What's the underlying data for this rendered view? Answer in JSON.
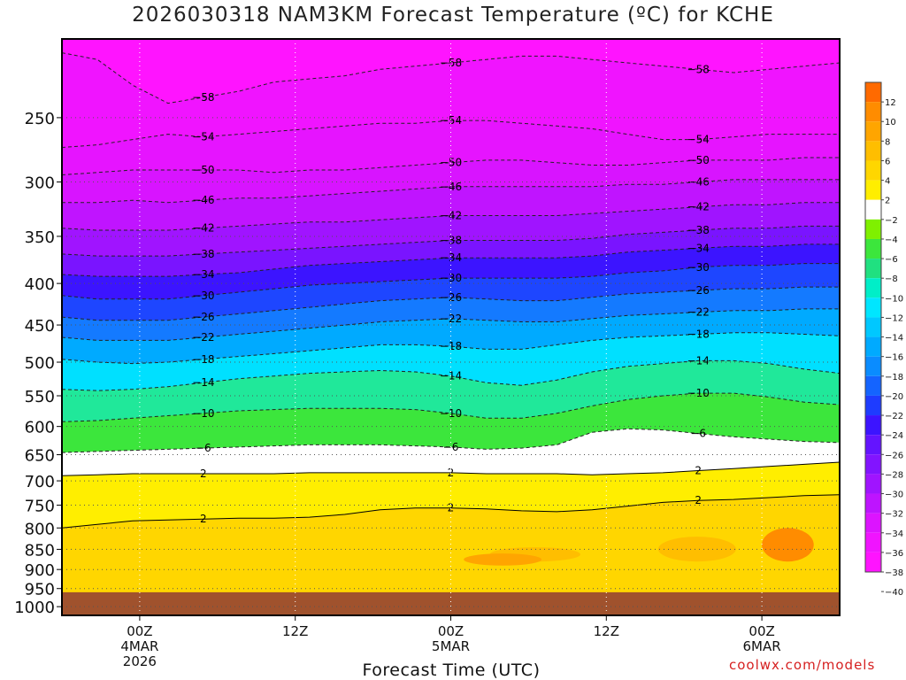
{
  "chart_data": {
    "type": "heatmap",
    "title": "2026030318 NAM3KM Forecast Temperature (ºC) for KCHE",
    "xlabel": "Forecast Time (UTC)",
    "ylabel": "",
    "credit": "coolwx.com/models",
    "x_ticks": [
      {
        "hour": 6,
        "lines": [
          "00Z",
          "4MAR",
          "2026"
        ]
      },
      {
        "hour": 18,
        "lines": [
          "12Z"
        ]
      },
      {
        "hour": 30,
        "lines": [
          "00Z",
          "5MAR"
        ]
      },
      {
        "hour": 42,
        "lines": [
          "12Z"
        ]
      },
      {
        "hour": 54,
        "lines": [
          "00Z",
          "6MAR"
        ]
      }
    ],
    "xlim_hours": [
      0,
      60
    ],
    "y_ticks": [
      250,
      300,
      350,
      400,
      450,
      500,
      550,
      600,
      650,
      700,
      750,
      800,
      850,
      900,
      950,
      1000
    ],
    "ylim_pressure_hpa": [
      200,
      1025
    ],
    "y_scale": "log",
    "grid": "dotted",
    "legend": "right",
    "colorbar_labels": [
      "12",
      "10",
      "8",
      "6",
      "4",
      "2",
      "-2",
      "-4",
      "-6",
      "-8",
      "-10",
      "-12",
      "-14",
      "-16",
      "-18",
      "-20",
      "-22",
      "-24",
      "-26",
      "-28",
      "-30",
      "-32",
      "-34",
      "-36",
      "-38",
      "-40"
    ],
    "colorbar_colors": [
      "#ff6a00",
      "#ff8c00",
      "#ffa500",
      "#ffbe00",
      "#ffd600",
      "#ffee00",
      "#ffffff",
      "#7ff000",
      "#3ce63c",
      "#20e080",
      "#00eec8",
      "#00e6ff",
      "#00c8ff",
      "#00aaff",
      "#0a8cff",
      "#1464ff",
      "#1e3cff",
      "#3c14ff",
      "#6414ff",
      "#8214ff",
      "#a014ff",
      "#be14ff",
      "#dc14ff",
      "#f014ff",
      "#ff14ff"
    ],
    "ground_color": "#a0522d",
    "ground_pressure_hpa": 960,
    "contours": [
      {
        "value": -58,
        "p": [
          208,
          212,
          228,
          240,
          236,
          232,
          226,
          224,
          222,
          218,
          216,
          214,
          212,
          210,
          210,
          212,
          214,
          216,
          218,
          220,
          218,
          216,
          214
        ]
      },
      {
        "value": -54,
        "p": [
          272,
          270,
          266,
          262,
          264,
          262,
          260,
          258,
          256,
          254,
          254,
          252,
          252,
          254,
          256,
          258,
          262,
          266,
          266,
          264,
          262,
          262,
          262
        ]
      },
      {
        "value": -50,
        "p": [
          294,
          292,
          290,
          290,
          290,
          290,
          292,
          290,
          290,
          288,
          286,
          284,
          282,
          282,
          284,
          286,
          286,
          284,
          282,
          282,
          282,
          280,
          280
        ]
      },
      {
        "value": -46,
        "p": [
          318,
          318,
          316,
          318,
          316,
          314,
          314,
          312,
          310,
          308,
          306,
          304,
          304,
          304,
          304,
          304,
          302,
          302,
          300,
          298,
          298,
          298,
          298
        ]
      },
      {
        "value": -42,
        "p": [
          342,
          344,
          344,
          344,
          342,
          340,
          338,
          336,
          336,
          334,
          332,
          330,
          330,
          330,
          330,
          328,
          326,
          324,
          322,
          320,
          320,
          318,
          318
        ]
      },
      {
        "value": -38,
        "p": [
          368,
          370,
          370,
          370,
          368,
          366,
          364,
          362,
          360,
          358,
          356,
          354,
          354,
          354,
          354,
          352,
          348,
          346,
          344,
          342,
          342,
          340,
          340
        ]
      },
      {
        "value": -34,
        "p": [
          390,
          392,
          392,
          392,
          390,
          388,
          384,
          380,
          378,
          376,
          374,
          372,
          372,
          372,
          372,
          370,
          366,
          364,
          362,
          360,
          360,
          358,
          358
        ]
      },
      {
        "value": -30,
        "p": [
          414,
          418,
          418,
          418,
          414,
          410,
          406,
          402,
          400,
          398,
          396,
          394,
          394,
          394,
          394,
          392,
          388,
          386,
          382,
          380,
          380,
          378,
          378
        ]
      },
      {
        "value": -26,
        "p": [
          440,
          444,
          444,
          444,
          440,
          436,
          432,
          428,
          424,
          420,
          418,
          416,
          418,
          420,
          420,
          416,
          412,
          410,
          408,
          406,
          406,
          404,
          404
        ]
      },
      {
        "value": -22,
        "p": [
          466,
          470,
          470,
          470,
          466,
          462,
          458,
          454,
          450,
          446,
          444,
          442,
          444,
          446,
          446,
          442,
          438,
          436,
          434,
          432,
          432,
          430,
          430
        ]
      },
      {
        "value": -18,
        "p": [
          496,
          500,
          502,
          500,
          496,
          492,
          488,
          484,
          480,
          476,
          476,
          478,
          482,
          482,
          476,
          470,
          466,
          464,
          462,
          460,
          460,
          462,
          464
        ]
      },
      {
        "value": -14,
        "p": [
          540,
          542,
          540,
          536,
          530,
          524,
          520,
          516,
          514,
          512,
          514,
          520,
          530,
          534,
          526,
          514,
          506,
          502,
          498,
          498,
          502,
          510,
          516
        ]
      },
      {
        "value": -10,
        "p": [
          592,
          590,
          586,
          582,
          578,
          574,
          572,
          570,
          570,
          570,
          572,
          578,
          586,
          586,
          578,
          566,
          556,
          550,
          546,
          546,
          552,
          560,
          564
        ]
      },
      {
        "value": -6,
        "p": [
          646,
          644,
          642,
          640,
          638,
          636,
          634,
          632,
          632,
          632,
          634,
          636,
          640,
          638,
          632,
          610,
          604,
          606,
          612,
          618,
          622,
          626,
          628
        ]
      },
      {
        "value": 2,
        "p": [
          690,
          688,
          686,
          686,
          686,
          686,
          686,
          684,
          684,
          684,
          684,
          684,
          686,
          686,
          686,
          688,
          686,
          684,
          680,
          676,
          672,
          668,
          664
        ]
      },
      {
        "value": 2,
        "p": [
          800,
          792,
          784,
          782,
          780,
          778,
          778,
          776,
          770,
          760,
          756,
          756,
          758,
          762,
          764,
          760,
          752,
          744,
          740,
          738,
          734,
          730,
          728
        ]
      }
    ]
  }
}
